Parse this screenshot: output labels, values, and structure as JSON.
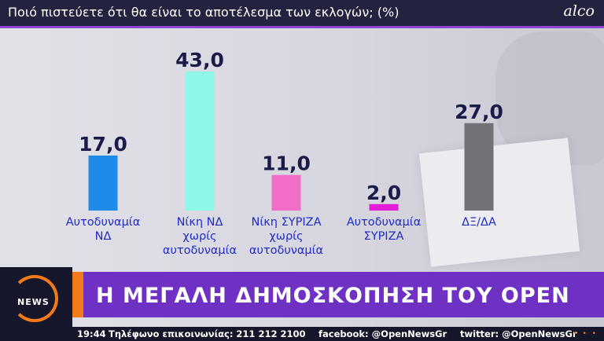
{
  "header": {
    "title": "Ποιό πιστεύετε ότι θα είναι το αποτέλεσμα των εκλογών; (%)",
    "logo": "alco"
  },
  "chart_data": {
    "type": "bar",
    "categories": [
      [
        "Αυτοδυναμία",
        "ΝΔ"
      ],
      [
        "Νίκη ΝΔ",
        "χωρίς",
        "αυτοδυναμία"
      ],
      [
        "Νίκη ΣΥΡΙΖΑ",
        "χωρίς",
        "αυτοδυναμία"
      ],
      [
        "Αυτοδυναμία",
        "ΣΥΡΙΖΑ"
      ],
      [
        "ΔΞ/ΔΑ"
      ]
    ],
    "values": [
      17.0,
      43.0,
      11.0,
      2.0,
      27.0
    ],
    "value_labels": [
      "17,0",
      "43,0",
      "11,0",
      "2,0",
      "27,0"
    ],
    "colors": [
      "#1f8be8",
      "#8ff7e8",
      "#f06ec8",
      "#e21fd6",
      "#717176"
    ],
    "label_color": "#1f2cc8",
    "value_color": "#1b1b4a",
    "ylim": [
      0,
      45
    ],
    "grid": false,
    "legend": "none"
  },
  "banner": {
    "channel": "NEWS",
    "headline": "Η ΜΕΓΑΛΗ ΔΗΜΟΣΚΟΠΗΣΗ ΤΟΥ OPEN"
  },
  "ticker": {
    "time": "19:44",
    "phone": "Τηλέφωνο επικοινωνίας: 211 212 2100",
    "facebook": "facebook: @OpenNewsGr",
    "twitter": "twitter: @OpenNewsGr"
  }
}
